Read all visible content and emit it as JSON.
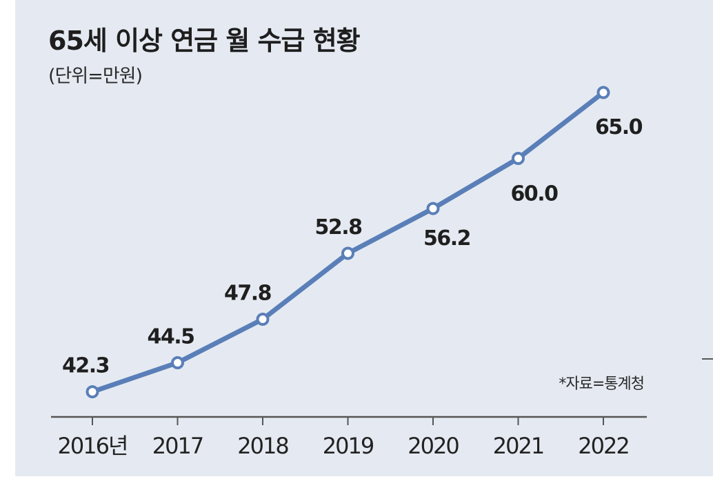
{
  "chart_data": {
    "type": "line",
    "title": "65세 이상 연금 월 수급 현황",
    "subtitle": "(단위=만원)",
    "source": "*자료=통계청",
    "categories": [
      "2016년",
      "2017",
      "2018",
      "2019",
      "2020",
      "2021",
      "2022"
    ],
    "values": [
      42.3,
      44.5,
      47.8,
      52.8,
      56.2,
      60.0,
      65.0
    ],
    "value_labels": [
      "42.3",
      "44.5",
      "47.8",
      "52.8",
      "56.2",
      "60.0",
      "65.0"
    ],
    "xlabel": "",
    "ylabel": "",
    "ylim": [
      40,
      70
    ],
    "grid": false,
    "legend": "none"
  },
  "colors": {
    "panel_background": "#e5eaf2",
    "line": "#5a7fb8",
    "marker_fill": "#ffffff",
    "axis": "#555555",
    "text": "#1f1f1f"
  }
}
